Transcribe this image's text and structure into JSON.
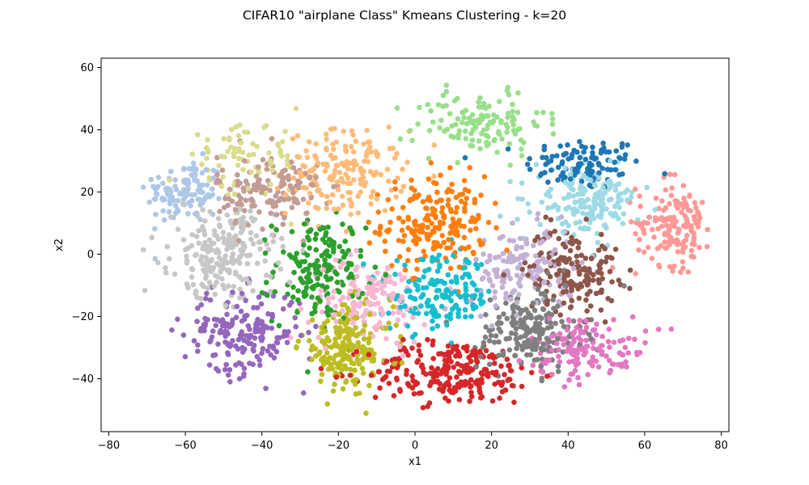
{
  "chart_data": {
    "type": "scatter",
    "title": "CIFAR10 \"airplane Class\" Kmeans Clustering - k=20",
    "xlabel": "x1",
    "ylabel": "x2",
    "xlim": [
      -82,
      82
    ],
    "ylim": [
      -57,
      63
    ],
    "xticks": [
      -80,
      -60,
      -40,
      -20,
      0,
      20,
      40,
      60,
      80
    ],
    "yticks": [
      -40,
      -20,
      0,
      20,
      40,
      60
    ],
    "grid": false,
    "legend": "none",
    "marker": "circle",
    "clusters": [
      {
        "id": 0,
        "color": "#1f77b4",
        "center": [
          44,
          29
        ],
        "spread": [
          9,
          5
        ],
        "count": 110
      },
      {
        "id": 1,
        "color": "#aec7e8",
        "center": [
          -60,
          20
        ],
        "spread": [
          6,
          6
        ],
        "count": 120
      },
      {
        "id": 2,
        "color": "#ff7f0e",
        "center": [
          5,
          10
        ],
        "spread": [
          8,
          9
        ],
        "count": 200
      },
      {
        "id": 3,
        "color": "#ffbb78",
        "center": [
          -18,
          26
        ],
        "spread": [
          9,
          8
        ],
        "count": 170
      },
      {
        "id": 4,
        "color": "#2ca02c",
        "center": [
          -25,
          -5
        ],
        "spread": [
          7,
          10
        ],
        "count": 170
      },
      {
        "id": 5,
        "color": "#98df8a",
        "center": [
          17,
          42
        ],
        "spread": [
          10,
          6
        ],
        "count": 130
      },
      {
        "id": 6,
        "color": "#d62728",
        "center": [
          10,
          -38
        ],
        "spread": [
          13,
          6
        ],
        "count": 240
      },
      {
        "id": 7,
        "color": "#ff9896",
        "center": [
          68,
          10
        ],
        "spread": [
          6,
          8
        ],
        "count": 150
      },
      {
        "id": 8,
        "color": "#9467bd",
        "center": [
          -45,
          -25
        ],
        "spread": [
          9,
          8
        ],
        "count": 190
      },
      {
        "id": 9,
        "color": "#c5b0d5",
        "center": [
          28,
          -5
        ],
        "spread": [
          8,
          8
        ],
        "count": 140
      },
      {
        "id": 10,
        "color": "#8c564b",
        "center": [
          41,
          -5
        ],
        "spread": [
          7,
          8
        ],
        "count": 160
      },
      {
        "id": 11,
        "color": "#c49c94",
        "center": [
          -38,
          20
        ],
        "spread": [
          8,
          7
        ],
        "count": 150
      },
      {
        "id": 12,
        "color": "#e377c2",
        "center": [
          45,
          -30
        ],
        "spread": [
          9,
          6
        ],
        "count": 140
      },
      {
        "id": 13,
        "color": "#f7b6d2",
        "center": [
          -12,
          -15
        ],
        "spread": [
          9,
          8
        ],
        "count": 150
      },
      {
        "id": 14,
        "color": "#7f7f7f",
        "center": [
          30,
          -25
        ],
        "spread": [
          8,
          8
        ],
        "count": 200
      },
      {
        "id": 15,
        "color": "#c7c7c7",
        "center": [
          -50,
          0
        ],
        "spread": [
          8,
          8
        ],
        "count": 220
      },
      {
        "id": 16,
        "color": "#bcbd22",
        "center": [
          -18,
          -30
        ],
        "spread": [
          7,
          8
        ],
        "count": 200
      },
      {
        "id": 17,
        "color": "#dbdb8d",
        "center": [
          -45,
          30
        ],
        "spread": [
          9,
          7
        ],
        "count": 80
      },
      {
        "id": 18,
        "color": "#17becf",
        "center": [
          7,
          -13
        ],
        "spread": [
          8,
          7
        ],
        "count": 160
      },
      {
        "id": 19,
        "color": "#9edae5",
        "center": [
          45,
          17
        ],
        "spread": [
          8,
          6
        ],
        "count": 180
      }
    ]
  }
}
